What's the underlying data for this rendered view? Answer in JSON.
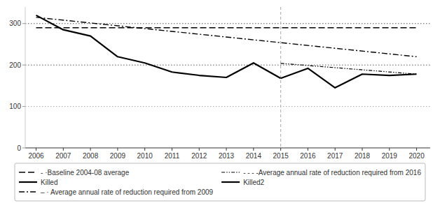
{
  "chart_data": {
    "type": "line",
    "series": [
      {
        "name": "- ·Baseline 2004-08 average",
        "color": "#000000",
        "line_style": "dashed",
        "x": [
          2006,
          2020
        ],
        "values": [
          290,
          290
        ]
      },
      {
        "name": "Killed",
        "color": "#000000",
        "line_style": "solid",
        "x": [
          2006,
          2007,
          2008,
          2009,
          2010,
          2011,
          2012,
          2013,
          2014,
          2015
        ],
        "values": [
          320,
          285,
          270,
          220,
          205,
          183,
          175,
          170,
          205,
          168
        ]
      },
      {
        "name": "–  · Average annual rate of reduction required from 2009",
        "color": "#000000",
        "line_style": "dashdot",
        "x": [
          2006,
          2020
        ],
        "values": [
          315,
          220
        ]
      },
      {
        "name": "- - - -Average annual rate of reduction required from 2016",
        "color": "#000000",
        "line_style": "dashdotdot",
        "x": [
          2015,
          2020
        ],
        "values": [
          204,
          178
        ]
      },
      {
        "name": "Killed2",
        "color": "#000000",
        "line_style": "solid",
        "x": [
          2015,
          2016,
          2017,
          2018,
          2019,
          2020
        ],
        "values": [
          168,
          192,
          145,
          178,
          175,
          178
        ]
      }
    ],
    "hlines": [
      {
        "value": 300,
        "color": "#555555"
      },
      {
        "value": 200,
        "color": "#555555"
      },
      {
        "value": 100,
        "color": "#aaaaaa"
      }
    ],
    "vlines": [
      {
        "value": 2015,
        "color": "#aaaaaa"
      }
    ],
    "xlim": [
      2005.6,
      2020.5
    ],
    "ylim": [
      0,
      340
    ],
    "yticks": [
      0,
      100,
      200,
      300
    ],
    "xticks": [
      2006,
      2007,
      2008,
      2009,
      2010,
      2011,
      2012,
      2013,
      2014,
      2015,
      2016,
      2017,
      2018,
      2019,
      2020
    ],
    "legend": "bottom"
  }
}
